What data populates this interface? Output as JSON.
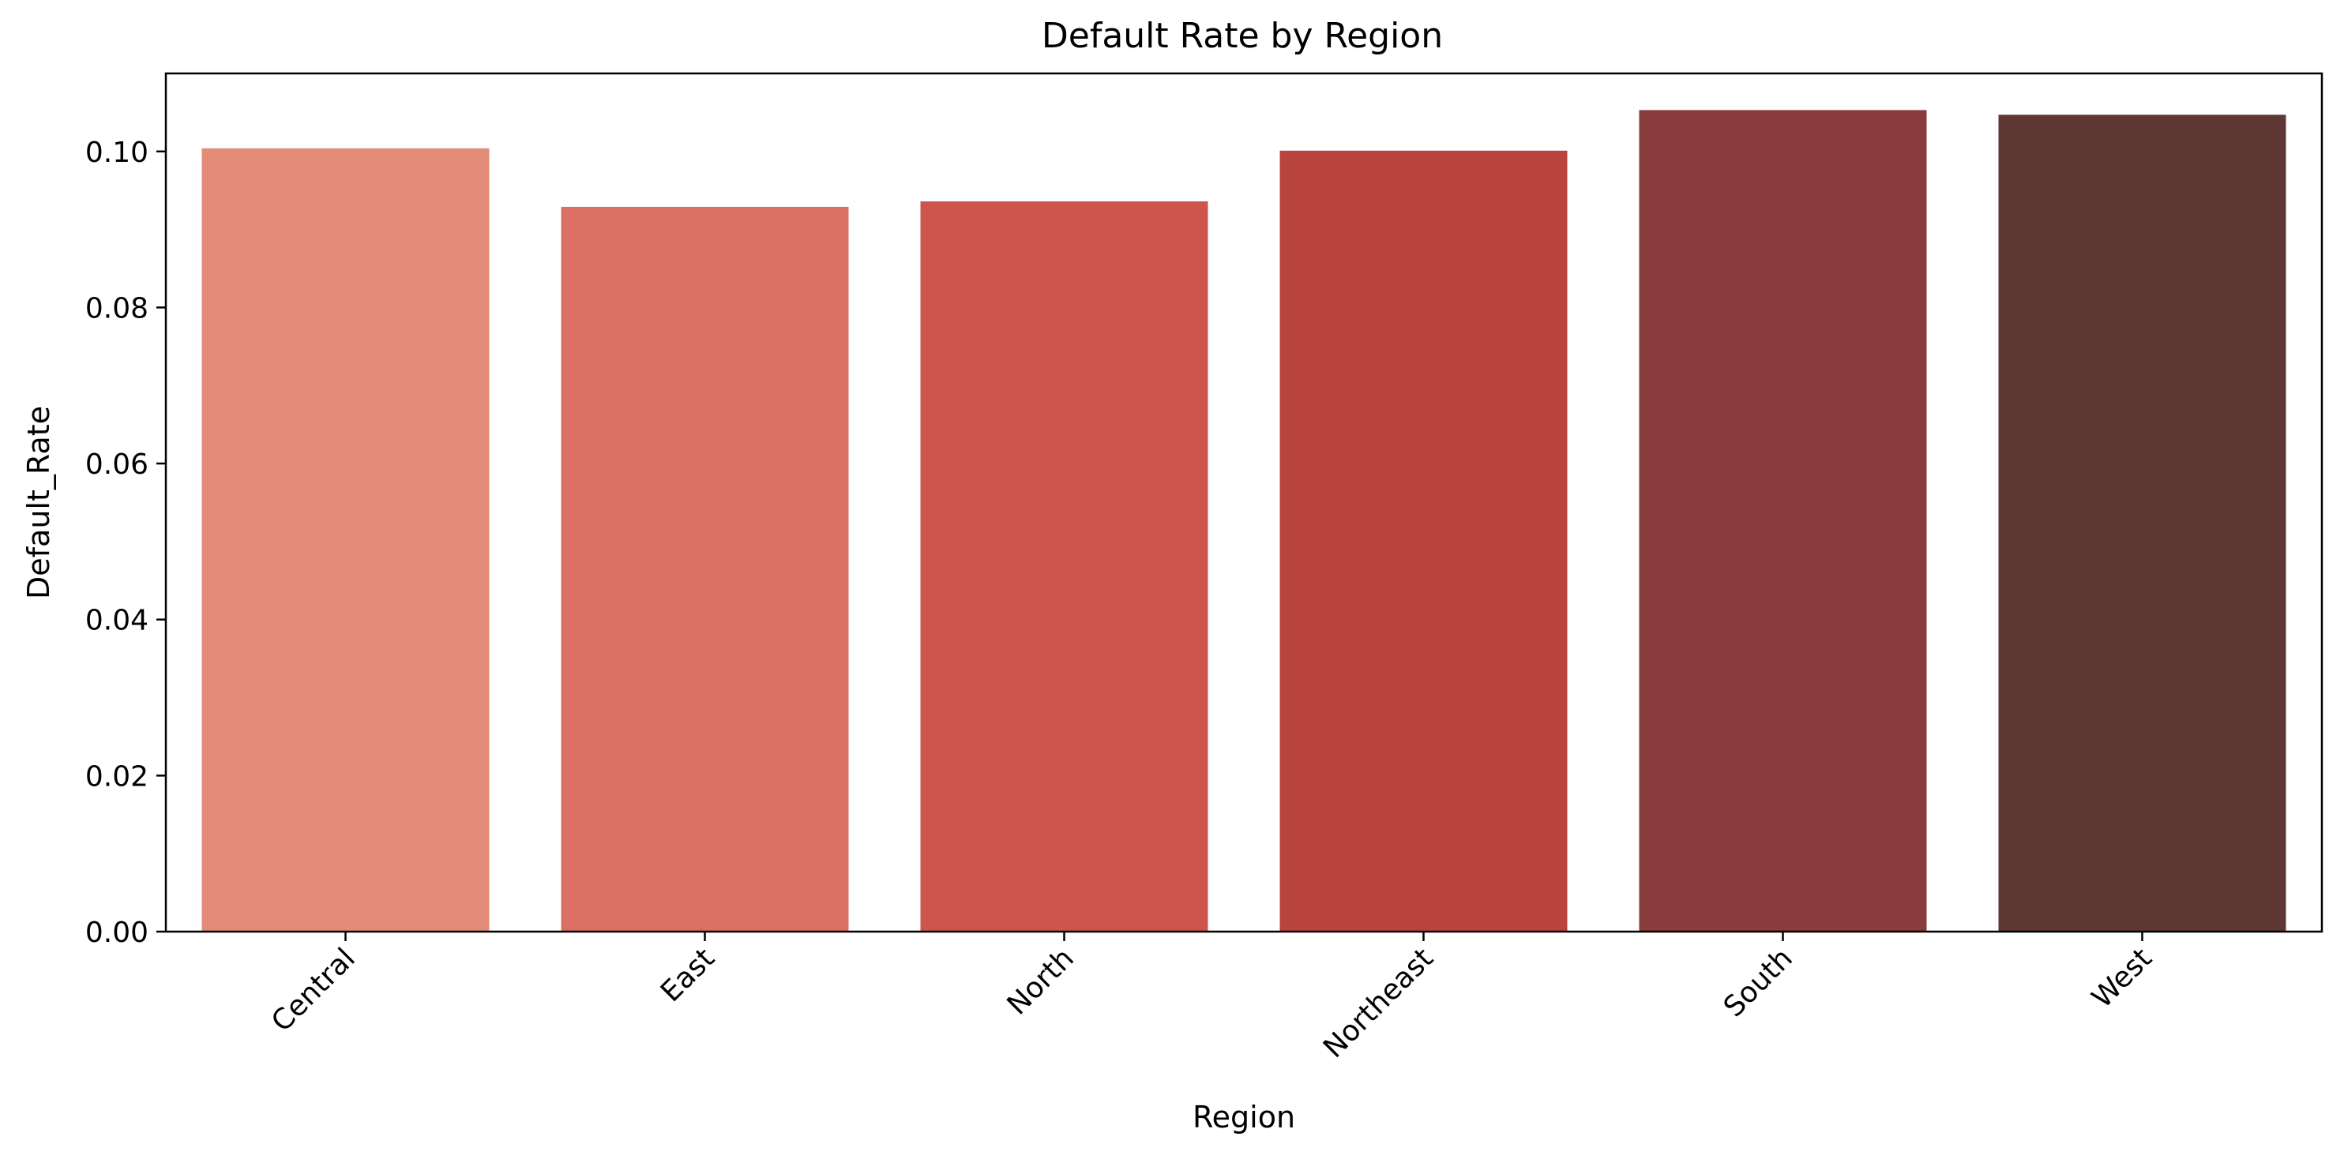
{
  "chart_data": {
    "type": "bar",
    "title": "Default Rate by Region",
    "xlabel": "Region",
    "ylabel": "Default_Rate",
    "categories": [
      "Central",
      "East",
      "North",
      "Northeast",
      "South",
      "West"
    ],
    "values": [
      0.1004,
      0.0929,
      0.0936,
      0.1001,
      0.1053,
      0.1047
    ],
    "colors": [
      "#e38b79",
      "#dc6f63",
      "#ce554b",
      "#b8433f",
      "#8a3b3b",
      "#5f3836"
    ],
    "ylim": [
      0,
      0.11
    ],
    "yticks": [
      0,
      0.02,
      0.04,
      0.06,
      0.08,
      0.1
    ],
    "ytick_labels": [
      "0.00",
      "0.02",
      "0.04",
      "0.06",
      "0.08",
      "0.10"
    ],
    "grid": false,
    "legend": "none"
  }
}
